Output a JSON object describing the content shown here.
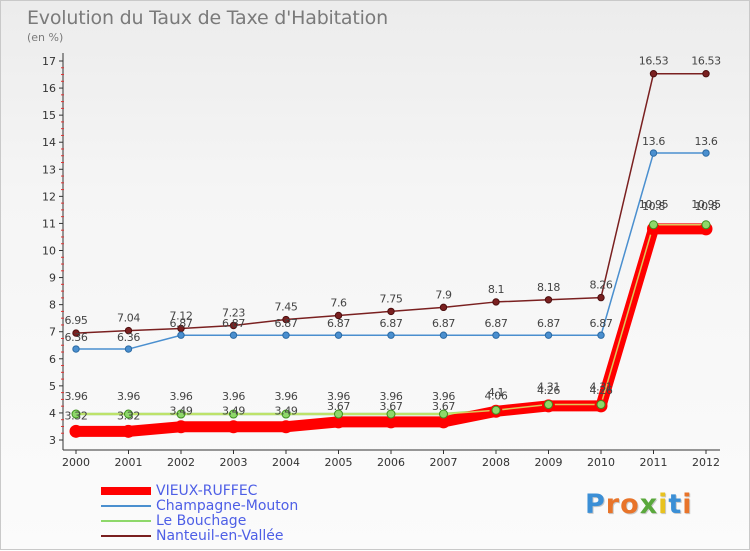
{
  "header": {
    "title": "Evolution du Taux de Taxe d'Habitation",
    "subtitle": "(en %)"
  },
  "brand": {
    "text": "Proxiti",
    "letter_colors": [
      "#3b8fd6",
      "#e8742a",
      "#e8742a",
      "#5aa83c",
      "#e8c21f",
      "#3b8fd6",
      "#e8742a"
    ]
  },
  "chart_data": {
    "type": "line",
    "title": "Evolution du Taux de Taxe d'Habitation",
    "subtitle": "(en %)",
    "xlabel": "",
    "ylabel": "",
    "x": [
      "2000",
      "2001",
      "2002",
      "2003",
      "2004",
      "2005",
      "2006",
      "2007",
      "2008",
      "2009",
      "2010",
      "2011",
      "2012"
    ],
    "ylim": [
      3,
      17
    ],
    "yticks": [
      "3",
      "4",
      "5",
      "6",
      "7",
      "8",
      "9",
      "10",
      "11",
      "12",
      "13",
      "14",
      "15",
      "16",
      "17"
    ],
    "grid": false,
    "legend_position": "bottom-left",
    "series": [
      {
        "name": "VIEUX-RUFFEC",
        "color": "#ff0000",
        "values": [
          3.32,
          3.32,
          3.49,
          3.49,
          3.49,
          3.67,
          3.67,
          3.67,
          4.06,
          4.26,
          4.26,
          10.8,
          10.8
        ],
        "labels": [
          "3.32",
          "3.32",
          "3.49",
          "3.49",
          "3.49",
          "3.67",
          "3.67",
          "3.67",
          "4.06",
          "4.26",
          "4.26",
          "10.8",
          "10.8"
        ]
      },
      {
        "name": "Champagne-Mouton",
        "color": "#4a8fcf",
        "values": [
          6.36,
          6.36,
          6.87,
          6.87,
          6.87,
          6.87,
          6.87,
          6.87,
          6.87,
          6.87,
          6.87,
          13.6,
          13.6
        ],
        "labels": [
          "6.36",
          "6.36",
          "6.87",
          "6.87",
          "6.87",
          "6.87",
          "6.87",
          "6.87",
          "6.87",
          "6.87",
          "6.87",
          "13.6",
          "13.6"
        ]
      },
      {
        "name": "Le Bouchage",
        "color": "#8ed86a",
        "values": [
          3.96,
          3.96,
          3.96,
          3.96,
          3.96,
          3.96,
          3.96,
          3.96,
          4.1,
          4.31,
          4.31,
          10.95,
          10.95
        ],
        "labels": [
          "3.96",
          "3.96",
          "3.96",
          "3.96",
          "3.96",
          "3.96",
          "3.96",
          "3.96",
          "4.1",
          "4.31",
          "4.31",
          "10.95",
          "10.95"
        ]
      },
      {
        "name": "Nanteuil-en-Vallée",
        "color": "#7a2020",
        "values": [
          6.95,
          7.04,
          7.12,
          7.23,
          7.45,
          7.6,
          7.75,
          7.9,
          8.1,
          8.18,
          8.26,
          16.53,
          16.53
        ],
        "labels": [
          "6.95",
          "7.04",
          "7.12",
          "7.23",
          "7.45",
          "7.6",
          "7.75",
          "7.9",
          "8.1",
          "8.18",
          "8.26",
          "16.53",
          "16.53"
        ]
      }
    ]
  }
}
